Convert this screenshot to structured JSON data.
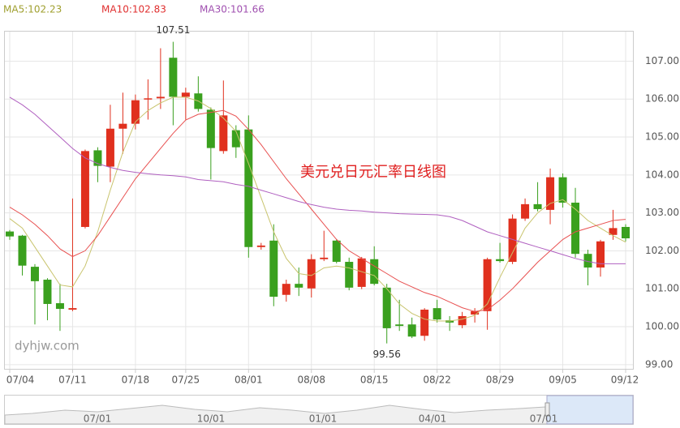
{
  "chart_data": {
    "type": "candlestick",
    "title": "美元兑日元汇率日线图",
    "watermark": "dyhjw.com",
    "categories": [
      "07/04",
      null,
      null,
      null,
      null,
      "07/11",
      null,
      null,
      null,
      null,
      "07/18",
      null,
      null,
      null,
      "07/25",
      null,
      null,
      null,
      null,
      "08/01",
      null,
      null,
      null,
      null,
      "08/08",
      null,
      null,
      null,
      null,
      "08/15",
      null,
      null,
      null,
      null,
      "08/22",
      null,
      null,
      null,
      null,
      "08/29",
      null,
      null,
      null,
      null,
      "09/05",
      null,
      null,
      null,
      null,
      "09/12"
    ],
    "open": [
      102.51,
      102.4,
      101.58,
      101.24,
      100.62,
      100.45,
      102.63,
      104.65,
      104.22,
      105.22,
      105.35,
      105.99,
      106.02,
      107.09,
      106.06,
      106.15,
      105.72,
      104.63,
      105.18,
      105.2,
      102.1,
      102.27,
      100.84,
      101.13,
      101.01,
      101.78,
      102.27,
      101.71,
      101.05,
      101.78,
      101.03,
      100.06,
      100.06,
      99.76,
      100.49,
      100.17,
      100.04,
      100.32,
      100.41,
      101.78,
      101.71,
      102.85,
      103.23,
      103.08,
      103.94,
      103.27,
      101.92,
      101.56,
      102.42,
      102.63
    ],
    "high": [
      102.55,
      102.42,
      101.65,
      101.28,
      101.13,
      103.38,
      104.67,
      104.73,
      105.85,
      106.17,
      106.12,
      106.52,
      107.34,
      107.51,
      106.3,
      106.6,
      105.78,
      106.49,
      105.31,
      105.57,
      102.21,
      102.7,
      101.24,
      101.56,
      101.91,
      102.53,
      102.31,
      101.82,
      101.84,
      102.12,
      101.13,
      100.71,
      100.24,
      100.49,
      100.71,
      100.28,
      100.39,
      100.49,
      101.82,
      102.21,
      102.96,
      103.38,
      103.81,
      104.17,
      104.04,
      103.66,
      102.03,
      102.29,
      103.08,
      102.7
    ],
    "low": [
      102.29,
      101.35,
      100.06,
      100.17,
      99.89,
      100.41,
      102.59,
      103.81,
      103.81,
      104.56,
      105.2,
      105.46,
      105.74,
      105.31,
      105.46,
      105.67,
      103.88,
      104.56,
      104.45,
      101.82,
      102.03,
      100.54,
      100.66,
      100.81,
      100.77,
      101.73,
      101.67,
      100.96,
      100.99,
      101.09,
      99.56,
      99.89,
      99.7,
      99.63,
      100.11,
      99.89,
      99.96,
      100.11,
      99.92,
      101.69,
      101.65,
      102.79,
      103.04,
      102.7,
      103.14,
      101.82,
      101.09,
      101.32,
      102.29,
      102.25
    ],
    "close": [
      102.38,
      101.61,
      101.2,
      100.6,
      100.47,
      100.49,
      104.63,
      104.24,
      105.22,
      105.35,
      105.97,
      106.02,
      106.06,
      106.06,
      106.17,
      105.74,
      104.71,
      105.57,
      104.73,
      102.1,
      102.14,
      100.79,
      101.13,
      101.03,
      101.78,
      101.82,
      101.71,
      101.03,
      101.8,
      101.13,
      99.96,
      100.02,
      99.74,
      100.45,
      100.19,
      100.11,
      100.28,
      100.41,
      101.78,
      101.73,
      102.85,
      103.23,
      103.1,
      103.94,
      103.27,
      101.92,
      101.56,
      102.25,
      102.6,
      102.33
    ],
    "up_color": "#e0301e",
    "down_color": "#3aa01e",
    "series": [
      {
        "name": "MA5:102.23",
        "color": "#c9c46e",
        "text_color": "#a0a030",
        "values": [
          102.85,
          102.6,
          102.1,
          101.6,
          101.1,
          101.05,
          101.6,
          102.5,
          103.6,
          104.6,
          105.4,
          105.7,
          105.9,
          106.05,
          106.05,
          105.95,
          105.75,
          105.5,
          105.15,
          104.3,
          103.4,
          102.5,
          101.8,
          101.4,
          101.35,
          101.55,
          101.6,
          101.55,
          101.45,
          101.35,
          101.0,
          100.6,
          100.35,
          100.2,
          100.15,
          100.15,
          100.2,
          100.3,
          100.6,
          101.3,
          101.95,
          102.6,
          103.0,
          103.25,
          103.35,
          103.1,
          102.8,
          102.6,
          102.4,
          102.23
        ]
      },
      {
        "name": "MA10:102.83",
        "color": "#e85050",
        "text_color": "#e03030",
        "values": [
          103.15,
          102.95,
          102.7,
          102.4,
          102.05,
          101.85,
          102.0,
          102.4,
          102.9,
          103.4,
          103.9,
          104.3,
          104.7,
          105.1,
          105.45,
          105.6,
          105.65,
          105.7,
          105.55,
          105.2,
          104.8,
          104.35,
          103.9,
          103.5,
          103.1,
          102.7,
          102.3,
          102.0,
          101.8,
          101.6,
          101.4,
          101.2,
          101.05,
          100.9,
          100.8,
          100.65,
          100.5,
          100.4,
          100.45,
          100.7,
          101.0,
          101.35,
          101.7,
          102.0,
          102.3,
          102.5,
          102.6,
          102.7,
          102.8,
          102.83
        ]
      },
      {
        "name": "MA30:101.66",
        "color": "#b060c0",
        "text_color": "#a050b0",
        "values": [
          106.05,
          105.85,
          105.6,
          105.3,
          105.0,
          104.7,
          104.45,
          104.3,
          104.2,
          104.12,
          104.07,
          104.03,
          104.0,
          103.98,
          103.95,
          103.88,
          103.85,
          103.82,
          103.75,
          103.7,
          103.6,
          103.5,
          103.4,
          103.3,
          103.22,
          103.15,
          103.1,
          103.07,
          103.05,
          103.02,
          103.0,
          102.98,
          102.97,
          102.96,
          102.95,
          102.9,
          102.8,
          102.65,
          102.5,
          102.4,
          102.3,
          102.2,
          102.1,
          102.0,
          101.9,
          101.8,
          101.72,
          101.66,
          101.66,
          101.66
        ]
      }
    ],
    "max_label": 107.51,
    "min_label": 99.56,
    "ylim": [
      98.89,
      107.8
    ],
    "yticks": [
      {
        "value": 99,
        "label": "99.00"
      },
      {
        "value": 100,
        "label": "100.00"
      },
      {
        "value": 101,
        "label": "101.00"
      },
      {
        "value": 102,
        "label": "102.00"
      },
      {
        "value": 103,
        "label": "103.00"
      },
      {
        "value": 104,
        "label": "104.00"
      },
      {
        "value": 105,
        "label": "105.00"
      },
      {
        "value": 106,
        "label": "106.00"
      },
      {
        "value": 107,
        "label": "107.00"
      }
    ],
    "grid": true,
    "navigator_labels": [
      "07/01",
      "10/01",
      "01/01",
      "04/01",
      "07/01"
    ]
  }
}
